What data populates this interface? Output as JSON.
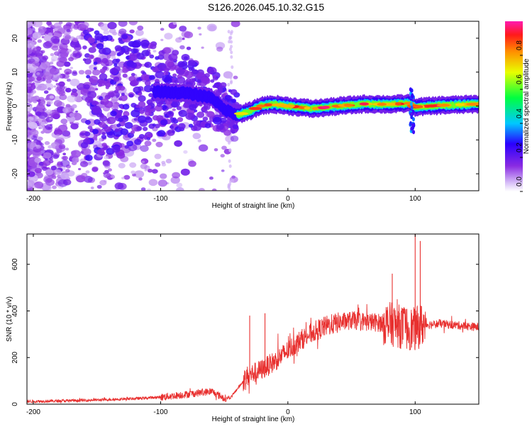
{
  "title": "S126.2026.045.10.32.G15",
  "chart_data": [
    {
      "type": "heatmap",
      "name": "spectrogram",
      "xlabel": "Height of straight line (km)",
      "ylabel": "Frequency (Hz)",
      "xlim": [
        -205,
        150
      ],
      "ylim": [
        -25,
        25
      ],
      "xticks": [
        -200,
        -100,
        0,
        100
      ],
      "yticks": [
        -20,
        -10,
        0,
        10,
        20
      ],
      "ridge_points": [
        {
          "h": -100,
          "f": 4.2
        },
        {
          "h": -80,
          "f": 3.8
        },
        {
          "h": -60,
          "f": 2.5
        },
        {
          "h": -50,
          "f": -1.0
        },
        {
          "h": -40,
          "f": -2.6
        },
        {
          "h": -30,
          "f": -1.5
        },
        {
          "h": -20,
          "f": 0.2
        },
        {
          "h": -10,
          "f": 0.5
        },
        {
          "h": 0,
          "f": 0.0
        },
        {
          "h": 20,
          "f": -0.8
        },
        {
          "h": 40,
          "f": 0.0
        },
        {
          "h": 60,
          "f": 0.6
        },
        {
          "h": 80,
          "f": 0.5
        },
        {
          "h": 95,
          "f": 0.8
        },
        {
          "h": 100,
          "f": -0.3
        },
        {
          "h": 120,
          "f": 0.2
        },
        {
          "h": 150,
          "f": 0.6
        }
      ],
      "colorbar": {
        "label": "Normalized spectral amplitude",
        "range": [
          0,
          1
        ],
        "ticks": [
          "0.0",
          "0.2",
          "0.4",
          "0.6",
          "0.8"
        ]
      }
    },
    {
      "type": "line",
      "name": "snr",
      "xlabel": "Height of straight line (km)",
      "ylabel": "SNR (10 * v/v)",
      "xlim": [
        -205,
        150
      ],
      "ylim": [
        0,
        730
      ],
      "xticks": [
        -200,
        -100,
        0,
        100
      ],
      "yticks": [
        0,
        200,
        400,
        600
      ],
      "color": "#e8302f",
      "series": [
        {
          "name": "SNR",
          "points": [
            {
              "h": -205,
              "v": 12
            },
            {
              "h": -180,
              "v": 14
            },
            {
              "h": -150,
              "v": 18
            },
            {
              "h": -120,
              "v": 24
            },
            {
              "h": -100,
              "v": 30
            },
            {
              "h": -80,
              "v": 42
            },
            {
              "h": -60,
              "v": 55
            },
            {
              "h": -50,
              "v": 25
            },
            {
              "h": -45,
              "v": 28
            },
            {
              "h": -32,
              "v": 120
            },
            {
              "h": -20,
              "v": 150
            },
            {
              "h": -10,
              "v": 185
            },
            {
              "h": 0,
              "v": 230
            },
            {
              "h": 10,
              "v": 275
            },
            {
              "h": 20,
              "v": 310
            },
            {
              "h": 30,
              "v": 335
            },
            {
              "h": 40,
              "v": 350
            },
            {
              "h": 50,
              "v": 360
            },
            {
              "h": 60,
              "v": 355
            },
            {
              "h": 70,
              "v": 350
            },
            {
              "h": 80,
              "v": 345
            },
            {
              "h": 90,
              "v": 330
            },
            {
              "h": 100,
              "v": 320
            },
            {
              "h": 105,
              "v": 340
            },
            {
              "h": 120,
              "v": 345
            },
            {
              "h": 140,
              "v": 335
            },
            {
              "h": 150,
              "v": 330
            }
          ],
          "spikes": [
            {
              "h": -30,
              "v": 380
            },
            {
              "h": -18,
              "v": 390
            },
            {
              "h": 82,
              "v": 560
            },
            {
              "h": 100,
              "v": 730
            },
            {
              "h": 104,
              "v": 700
            }
          ]
        }
      ]
    }
  ]
}
